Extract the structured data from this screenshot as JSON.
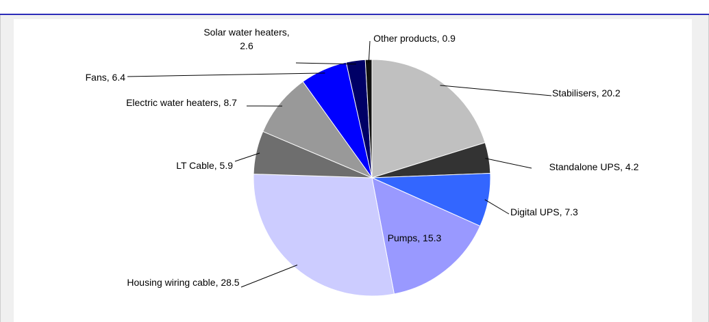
{
  "chart_data": {
    "type": "pie",
    "values": [
      20.2,
      4.2,
      7.3,
      15.3,
      28.5,
      5.9,
      8.7,
      6.4,
      2.6,
      0.9
    ],
    "value_labels": [
      "Stabilisers, 20.2",
      "Standalone UPS, 4.2",
      "Digital UPS, 7.3",
      "Pumps, 15.3",
      "Housing wiring cable, 28.5",
      "LT Cable, 5.9",
      "Electric water heaters, 8.7",
      "Fans, 6.4",
      "Solar water heaters, 2.6",
      "Other products, 0.9"
    ],
    "colors": [
      "#c0c0c0",
      "#333333",
      "#3366ff",
      "#9999ff",
      "#ccccff",
      "#6e6e6e",
      "#999999",
      "#0000ff",
      "#000066",
      "#111111"
    ]
  }
}
